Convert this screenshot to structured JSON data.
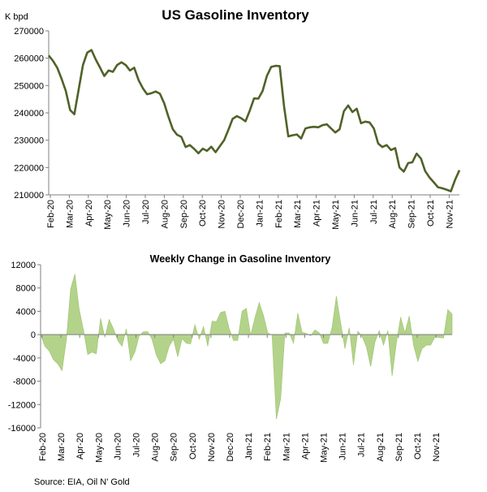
{
  "source": "Source: EIA, Oil N' Gold",
  "chart_data": [
    {
      "type": "line",
      "title": "US Gasoline Inventory",
      "unit_label": "K bpd",
      "ylim": [
        210000,
        270000
      ],
      "yticks": [
        210000,
        220000,
        230000,
        240000,
        250000,
        260000,
        270000
      ],
      "month_labels": [
        "Feb-20",
        "Mar-20",
        "Apr-20",
        "May-20",
        "Jun-20",
        "Jul-20",
        "Aug-20",
        "Sep-20",
        "Oct-20",
        "Nov-20",
        "Dec-20",
        "Jan-21",
        "Feb-21",
        "Mar-21",
        "Apr-21",
        "May-21",
        "Jun-21",
        "Jul-21",
        "Aug-21",
        "Sep-21",
        "Oct-21",
        "Nov-21"
      ],
      "grid": false,
      "color": "#4f6228",
      "series": [
        {
          "values": [
            261000,
            259000,
            256500,
            252500,
            248000,
            241000,
            239500,
            248500,
            257500,
            262000,
            263000,
            259500,
            256500,
            253500,
            255500,
            255000,
            257500,
            258500,
            257500,
            255500,
            256500,
            252000,
            249000,
            246800,
            247200,
            247800,
            247000,
            243500,
            238500,
            234000,
            232000,
            231200,
            227500,
            228200,
            226800,
            225200,
            226900,
            226100,
            227600,
            225600,
            227800,
            230000,
            233800,
            237800,
            238800,
            238000,
            236900,
            240800,
            245300,
            245200,
            248000,
            253500,
            256800,
            257200,
            257100,
            242500,
            231400,
            231800,
            232100,
            230600,
            234300,
            234700,
            234900,
            234700,
            235500,
            235800,
            234300,
            232800,
            234000,
            240600,
            242700,
            240300,
            241500,
            236200,
            236800,
            236500,
            234300,
            228800,
            227500,
            228200,
            226400,
            227100,
            220000,
            218500,
            221600,
            221900,
            225100,
            223300,
            218700,
            216400,
            214600,
            212800,
            212400,
            211900,
            211300,
            215500,
            219000
          ]
        }
      ]
    },
    {
      "type": "area",
      "title": "Weekly Change in Gasoline Inventory",
      "ylim": [
        -16000,
        12000
      ],
      "yticks": [
        -16000,
        -12000,
        -8000,
        -4000,
        0,
        4000,
        8000,
        12000
      ],
      "month_labels": [
        "Feb-20",
        "Mar-20",
        "Apr-20",
        "May-20",
        "Jun-20",
        "Jul-20",
        "Aug-20",
        "Sep-20",
        "Oct-20",
        "Nov-20",
        "Dec-20",
        "Jan-21",
        "Feb-21",
        "Mar-21",
        "Apr-21",
        "May-21",
        "Jun-21",
        "Jul-21",
        "Aug-21",
        "Sep-21",
        "Oct-21",
        "Nov-21"
      ],
      "grid": false,
      "color": "#b3d38a",
      "series": [
        {
          "values": [
            0,
            -2000,
            -2800,
            -4300,
            -5000,
            -6200,
            -1000,
            7800,
            10400,
            4400,
            800,
            -3400,
            -3000,
            -3300,
            2800,
            -500,
            2600,
            1000,
            -1000,
            -2000,
            1000,
            -4500,
            -3000,
            -200,
            500,
            500,
            -800,
            -3500,
            -5000,
            -4500,
            -2000,
            -800,
            -3800,
            -700,
            -1500,
            -1600,
            1700,
            -800,
            1400,
            -2000,
            2300,
            2200,
            3800,
            4000,
            1000,
            -1000,
            -1000,
            4000,
            4500,
            -100,
            2900,
            5500,
            3300,
            300,
            -100,
            -14500,
            -11000,
            300,
            300,
            -1500,
            3700,
            400,
            200,
            -200,
            800,
            300,
            -1500,
            -1500,
            1200,
            6600,
            2000,
            -2400,
            1200,
            -5200,
            600,
            -300,
            -2100,
            -5500,
            -1300,
            700,
            -1800,
            700,
            -7100,
            -1500,
            3000,
            300,
            3200,
            -1800,
            -4600,
            -2400,
            -1800,
            -1800,
            -400,
            -500,
            -600,
            4300,
            3500
          ]
        }
      ]
    }
  ]
}
